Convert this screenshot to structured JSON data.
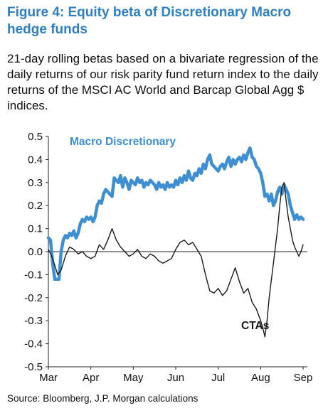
{
  "figure": {
    "title": "Figure 4: Equity beta of Discretionary Macro hedge funds",
    "subtitle": "21-day rolling betas based on a bivariate regression of the daily returns of our risk parity fund return index to the daily returns of the MSCI AC World and Barcap Global Agg $ indices.",
    "source": "Source: Bloomberg, J.P. Morgan calculations"
  },
  "chart_data": {
    "type": "line",
    "title": "",
    "xlabel": "",
    "ylabel": "",
    "x_unit": "month index (0 = start of Mar)",
    "xlim": [
      0,
      6.1
    ],
    "ylim": [
      -0.5,
      0.5
    ],
    "x_tick_labels": [
      "Mar",
      "Apr",
      "May",
      "Jun",
      "Jul",
      "Aug",
      "Sep"
    ],
    "y_ticks": [
      0.5,
      0.4,
      0.3,
      0.2,
      0.1,
      0.0,
      -0.1,
      -0.2,
      -0.3,
      -0.4,
      -0.5
    ],
    "y_tick_labels": [
      "0.5",
      "0.4",
      "0.3",
      "0.2",
      "0.1",
      "0.0",
      "-0.1",
      "-0.2",
      "-0.3",
      "-0.4",
      "-0.5"
    ],
    "grid": false,
    "colors": {
      "macro": "#3e8fd1",
      "ctas": "#1a1a1a",
      "axis": "#222222"
    },
    "series": [
      {
        "name": "Macro Discretionary",
        "x": [
          0.0,
          0.05,
          0.1,
          0.15,
          0.2,
          0.25,
          0.3,
          0.35,
          0.4,
          0.45,
          0.5,
          0.55,
          0.6,
          0.65,
          0.7,
          0.75,
          0.8,
          0.85,
          0.9,
          0.95,
          1.0,
          1.05,
          1.1,
          1.15,
          1.2,
          1.25,
          1.3,
          1.35,
          1.4,
          1.45,
          1.5,
          1.55,
          1.6,
          1.65,
          1.7,
          1.75,
          1.8,
          1.85,
          1.9,
          1.95,
          2.0,
          2.05,
          2.1,
          2.15,
          2.2,
          2.25,
          2.3,
          2.35,
          2.4,
          2.45,
          2.5,
          2.55,
          2.6,
          2.65,
          2.7,
          2.75,
          2.8,
          2.85,
          2.9,
          2.95,
          3.0,
          3.05,
          3.1,
          3.15,
          3.2,
          3.25,
          3.3,
          3.35,
          3.4,
          3.45,
          3.5,
          3.55,
          3.6,
          3.65,
          3.7,
          3.75,
          3.8,
          3.85,
          3.9,
          3.95,
          4.0,
          4.05,
          4.1,
          4.15,
          4.2,
          4.25,
          4.3,
          4.35,
          4.4,
          4.45,
          4.5,
          4.55,
          4.6,
          4.65,
          4.7,
          4.75,
          4.8,
          4.85,
          4.9,
          4.95,
          5.0,
          5.05,
          5.1,
          5.15,
          5.2,
          5.25,
          5.3,
          5.35,
          5.4,
          5.45,
          5.5,
          5.55,
          5.6,
          5.65,
          5.7,
          5.75,
          5.8,
          5.85,
          5.9,
          5.95,
          6.0
        ],
        "values": [
          0.06,
          0.05,
          -0.05,
          -0.12,
          -0.12,
          -0.12,
          0.0,
          0.05,
          0.07,
          0.06,
          0.08,
          0.07,
          0.09,
          0.06,
          0.08,
          0.12,
          0.14,
          0.13,
          0.15,
          0.14,
          0.15,
          0.13,
          0.15,
          0.2,
          0.22,
          0.21,
          0.25,
          0.27,
          0.26,
          0.25,
          0.24,
          0.32,
          0.31,
          0.3,
          0.33,
          0.28,
          0.32,
          0.3,
          0.27,
          0.31,
          0.3,
          0.29,
          0.32,
          0.3,
          0.31,
          0.28,
          0.3,
          0.29,
          0.31,
          0.3,
          0.29,
          0.27,
          0.3,
          0.28,
          0.29,
          0.27,
          0.3,
          0.28,
          0.29,
          0.28,
          0.31,
          0.29,
          0.32,
          0.3,
          0.33,
          0.31,
          0.35,
          0.32,
          0.31,
          0.34,
          0.33,
          0.36,
          0.34,
          0.38,
          0.36,
          0.4,
          0.42,
          0.38,
          0.37,
          0.36,
          0.35,
          0.37,
          0.38,
          0.36,
          0.39,
          0.41,
          0.37,
          0.4,
          0.38,
          0.4,
          0.41,
          0.39,
          0.42,
          0.4,
          0.43,
          0.45,
          0.41,
          0.4,
          0.37,
          0.36,
          0.34,
          0.3,
          0.24,
          0.25,
          0.22,
          0.25,
          0.2,
          0.22,
          0.26,
          0.28,
          0.25,
          0.29,
          0.27,
          0.25,
          0.2,
          0.17,
          0.14,
          0.16,
          0.14,
          0.15,
          0.14
        ]
      },
      {
        "name": "CTAs",
        "x": [
          0.0,
          0.08,
          0.15,
          0.22,
          0.3,
          0.4,
          0.5,
          0.6,
          0.7,
          0.8,
          0.9,
          1.0,
          1.1,
          1.2,
          1.3,
          1.4,
          1.5,
          1.6,
          1.7,
          1.8,
          1.9,
          2.0,
          2.1,
          2.2,
          2.3,
          2.4,
          2.5,
          2.6,
          2.7,
          2.8,
          2.9,
          3.0,
          3.1,
          3.2,
          3.3,
          3.4,
          3.5,
          3.6,
          3.7,
          3.8,
          3.9,
          4.0,
          4.1,
          4.2,
          4.3,
          4.4,
          4.5,
          4.6,
          4.7,
          4.8,
          4.9,
          5.0,
          5.05,
          5.1,
          5.15,
          5.2,
          5.3,
          5.4,
          5.45,
          5.5,
          5.55,
          5.6,
          5.65,
          5.7,
          5.75,
          5.8,
          5.85,
          5.9,
          5.95,
          6.0
        ],
        "values": [
          0.01,
          -0.02,
          -0.06,
          -0.1,
          -0.08,
          -0.02,
          0.02,
          0.01,
          -0.01,
          0.0,
          -0.02,
          -0.03,
          -0.02,
          0.03,
          0.01,
          0.05,
          0.1,
          0.05,
          0.02,
          0.0,
          -0.02,
          -0.01,
          0.01,
          -0.02,
          -0.03,
          -0.01,
          -0.02,
          -0.04,
          -0.05,
          -0.04,
          -0.03,
          0.01,
          0.04,
          0.05,
          0.03,
          0.04,
          0.01,
          -0.02,
          -0.1,
          -0.17,
          -0.18,
          -0.16,
          -0.19,
          -0.17,
          -0.12,
          -0.07,
          -0.13,
          -0.18,
          -0.16,
          -0.22,
          -0.25,
          -0.3,
          -0.33,
          -0.37,
          -0.3,
          -0.2,
          -0.05,
          0.1,
          0.2,
          0.28,
          0.3,
          0.22,
          0.15,
          0.1,
          0.05,
          0.02,
          0.0,
          -0.02,
          0.0,
          0.03
        ]
      }
    ],
    "annotations": [
      {
        "text": "Macro Discretionary",
        "series": "Macro Discretionary"
      },
      {
        "text": "CTAs",
        "series": "CTAs"
      }
    ]
  }
}
